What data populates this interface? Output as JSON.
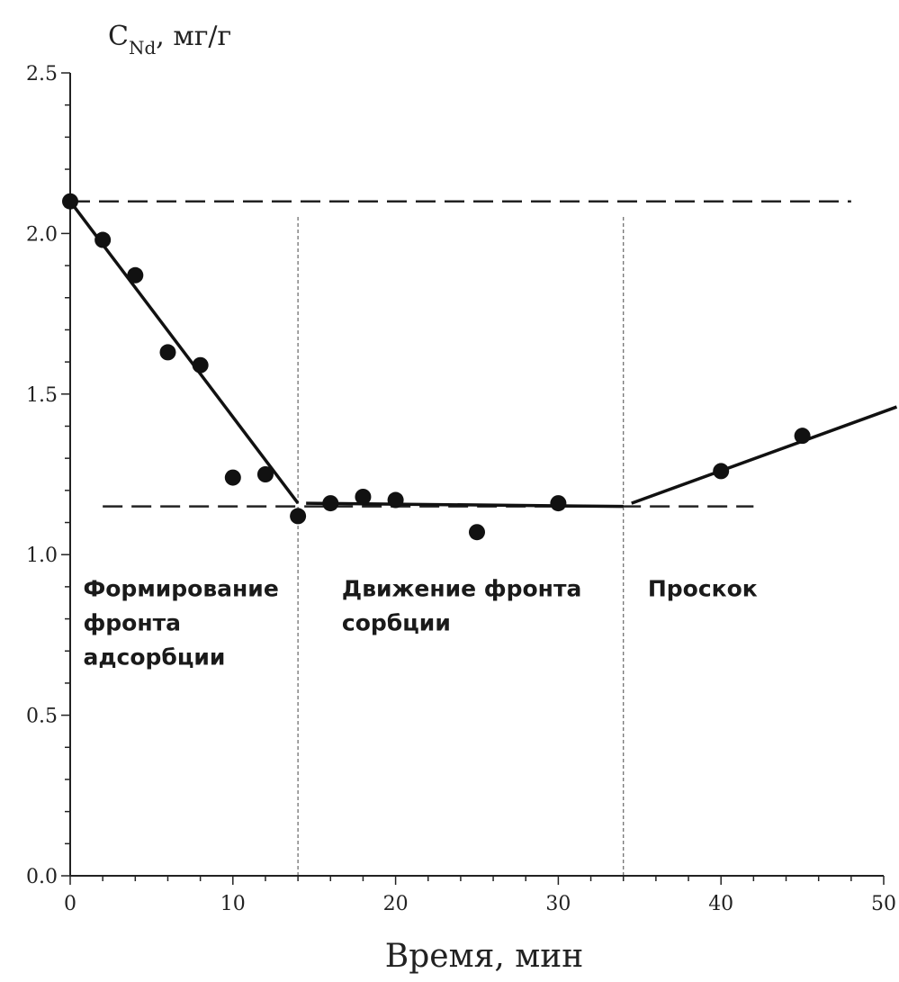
{
  "chart_data": {
    "type": "scatter",
    "ylabel_main": "C",
    "ylabel_sub": "Nd",
    "ylabel_unit": ", мг/г",
    "xlabel": "Время, мин",
    "xlim": [
      0,
      50
    ],
    "ylim": [
      0,
      2.5
    ],
    "x_ticks": [
      "0",
      "10",
      "20",
      "30",
      "40",
      "50"
    ],
    "y_ticks": [
      "0.0",
      "0.5",
      "1.0",
      "1.5",
      "2.0",
      "2.5"
    ],
    "grid": false,
    "points": [
      {
        "x": 0,
        "y": 2.1
      },
      {
        "x": 2,
        "y": 1.98
      },
      {
        "x": 4,
        "y": 1.87
      },
      {
        "x": 6,
        "y": 1.63
      },
      {
        "x": 8,
        "y": 1.59
      },
      {
        "x": 10,
        "y": 1.24
      },
      {
        "x": 12,
        "y": 1.25
      },
      {
        "x": 14,
        "y": 1.12
      },
      {
        "x": 16,
        "y": 1.16
      },
      {
        "x": 18,
        "y": 1.18
      },
      {
        "x": 20,
        "y": 1.17
      },
      {
        "x": 25,
        "y": 1.07
      },
      {
        "x": 30,
        "y": 1.16
      },
      {
        "x": 40,
        "y": 1.26
      },
      {
        "x": 45,
        "y": 1.37
      }
    ],
    "trend_lines": [
      {
        "x": [
          0,
          14
        ],
        "y": [
          2.1,
          1.16
        ]
      },
      {
        "x": [
          14.5,
          34
        ],
        "y": [
          1.16,
          1.15
        ]
      },
      {
        "x": [
          34.5,
          50.8
        ],
        "y": [
          1.16,
          1.46
        ]
      }
    ],
    "reference_lines": [
      {
        "orientation": "horizontal",
        "y": 2.1,
        "x_range": [
          0,
          48
        ]
      },
      {
        "orientation": "horizontal",
        "y": 1.15,
        "x_range": [
          2,
          42
        ]
      },
      {
        "orientation": "vertical",
        "x": 14,
        "y_range": [
          0,
          2.06
        ]
      },
      {
        "orientation": "vertical",
        "x": 34,
        "y_range": [
          0,
          2.06
        ]
      }
    ],
    "annotations": [
      {
        "lines": [
          "Формирование",
          "фронта",
          "адсорбции"
        ],
        "x": 0.8,
        "y": 0.87
      },
      {
        "lines": [
          "Движение фронта",
          "сорбции"
        ],
        "x": 16.7,
        "y": 0.87
      },
      {
        "lines": [
          "Проскок"
        ],
        "x": 35.5,
        "y": 0.87
      }
    ]
  }
}
